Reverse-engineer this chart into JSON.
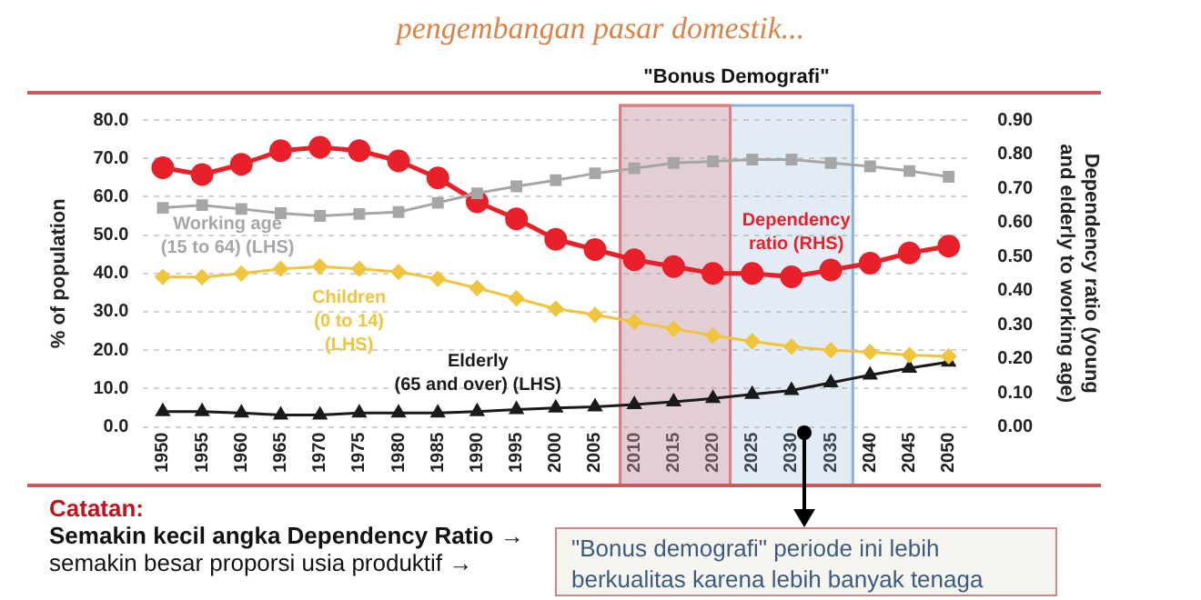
{
  "chart_data": {
    "type": "line",
    "title": "pengembangan pasar domestik...",
    "ylabel": "% of population",
    "y2label": "Dependency ratio (young and elderly to working age)",
    "x": [
      1950,
      1955,
      1960,
      1965,
      1970,
      1975,
      1980,
      1985,
      1990,
      1995,
      2000,
      2005,
      2010,
      2015,
      2020,
      2025,
      2030,
      2035,
      2040,
      2045,
      2050
    ],
    "xlim": [
      1947.5,
      2052.5
    ],
    "xticks": [
      1950,
      1955,
      1960,
      1965,
      1970,
      1975,
      1980,
      1985,
      1990,
      1995,
      2000,
      2005,
      2010,
      2015,
      2020,
      2025,
      2030,
      2035,
      2040,
      2045,
      2050
    ],
    "ylim": [
      0,
      80
    ],
    "yticks": [
      {
        "value": 0,
        "label": "0.0"
      },
      {
        "value": 10,
        "label": "10.0"
      },
      {
        "value": 20,
        "label": "20.0"
      },
      {
        "value": 30,
        "label": "30.0"
      },
      {
        "value": 40,
        "label": "40.0"
      },
      {
        "value": 50,
        "label": "50.0"
      },
      {
        "value": 60,
        "label": "60.0"
      },
      {
        "value": 70,
        "label": "70.0"
      },
      {
        "value": 80,
        "label": "80.0"
      }
    ],
    "y2lim": [
      0,
      0.9
    ],
    "y2ticks": [
      {
        "value": 0,
        "label": "0.00"
      },
      {
        "value": 0.1,
        "label": "0.10"
      },
      {
        "value": 0.2,
        "label": "0.20"
      },
      {
        "value": 0.3,
        "label": "0.30"
      },
      {
        "value": 0.4,
        "label": "0.40"
      },
      {
        "value": 0.5,
        "label": "0.50"
      },
      {
        "value": 0.6,
        "label": "0.60"
      },
      {
        "value": 0.7,
        "label": "0.70"
      },
      {
        "value": 0.8,
        "label": "0.80"
      },
      {
        "value": 0.9,
        "label": "0.90"
      }
    ],
    "grid": "y",
    "legend": false,
    "line_style": "solid",
    "series": [
      {
        "name": "Working age\n(15 to 64) (LHS)",
        "color": "#a6a6a6",
        "marker": "square",
        "values": [
          57.1,
          57.8,
          56.8,
          55.7,
          55,
          55.5,
          56,
          58.4,
          60.9,
          62.7,
          64.3,
          66.1,
          67.4,
          68.8,
          69.2,
          69.7,
          69.7,
          68.8,
          67.9,
          66.7,
          65.2
        ]
      },
      {
        "name": "Children\n(0 to 14)\n(LHS)",
        "color": "#f0c43c",
        "marker": "diamond",
        "values": [
          39.1,
          39,
          40,
          41.2,
          41.8,
          41.2,
          40.4,
          38.6,
          36.2,
          33.5,
          30.8,
          29.2,
          27.4,
          25.6,
          23.8,
          22.3,
          20.9,
          20,
          19.5,
          18.7,
          18.4
        ]
      },
      {
        "name": "Elderly\n(65 and over) (LHS)",
        "color": "#1a1a1a",
        "marker": "triangle",
        "values": [
          4,
          4,
          3.6,
          3.1,
          3.1,
          3.6,
          3.6,
          3.6,
          4,
          4.5,
          4.9,
          5.2,
          5.8,
          6.5,
          7.4,
          8.5,
          9.5,
          11.5,
          13.5,
          15.3,
          16.9
        ]
      },
      {
        "name": "Dependency\nratio (RHS)",
        "color": "#e8202a",
        "marker": "circle",
        "axis": "y2",
        "values": [
          0.76,
          0.74,
          0.77,
          0.81,
          0.82,
          0.81,
          0.78,
          0.73,
          0.66,
          0.61,
          0.55,
          0.52,
          0.49,
          0.47,
          0.45,
          0.45,
          0.44,
          0.46,
          0.48,
          0.51,
          0.53
        ]
      }
    ],
    "bands": [
      {
        "axis": "x",
        "from": 2008.2,
        "to": 2037.8,
        "label": "\"Bonus Demografi\"",
        "color": "#8fb0d8"
      },
      {
        "axis": "x",
        "from": 2008.2,
        "to": 2022.2,
        "color": "#e07c7c"
      }
    ],
    "annotations": [
      "Catatan:",
      "Semakin kecil angka Dependency Ratio →",
      "semakin besar proporsi usia produktif →",
      "\"Bonus demografi\" periode ini lebih berkualitas karena lebih banyak tenaga"
    ]
  }
}
